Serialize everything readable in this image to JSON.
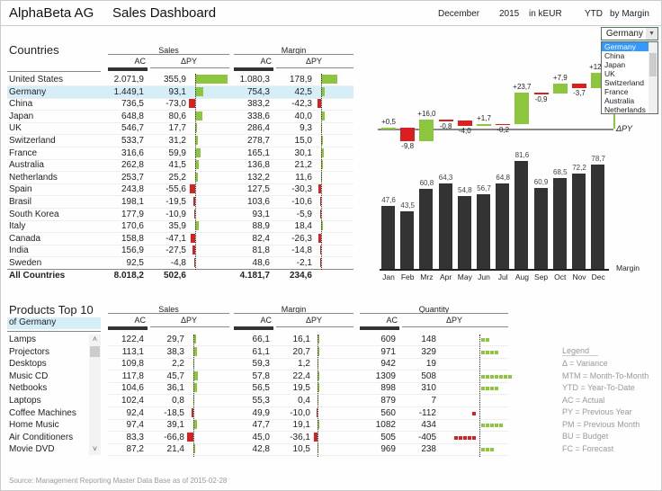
{
  "header": {
    "company": "AlphaBeta AG",
    "title": "Sales Dashboard",
    "month": "December",
    "year": "2015",
    "unit": "in kEUR",
    "period": "YTD",
    "measure": "by Margin"
  },
  "colors": {
    "positive": "#8cc63f",
    "negative": "#d9201f",
    "bar": "#333333",
    "highlight": "#d6eef8"
  },
  "countries": {
    "title": "Countries",
    "sales_label": "Sales",
    "margin_label": "Margin",
    "ac_label": "AC",
    "dpy_label": "ΔPY",
    "rows": [
      {
        "name": "United States",
        "sales_ac": "2.071,9",
        "sales_dpy": 355.9,
        "sales_dpy_text": "355,9",
        "margin_ac": "1.080,3",
        "margin_dpy": 178.9,
        "margin_dpy_text": "178,9"
      },
      {
        "name": "Germany",
        "sales_ac": "1.449,1",
        "sales_dpy": 93.1,
        "sales_dpy_text": "93,1",
        "margin_ac": "754,3",
        "margin_dpy": 42.5,
        "margin_dpy_text": "42,5",
        "selected": true
      },
      {
        "name": "China",
        "sales_ac": "736,5",
        "sales_dpy": -73.0,
        "sales_dpy_text": "-73,0",
        "margin_ac": "383,2",
        "margin_dpy": -42.3,
        "margin_dpy_text": "-42,3"
      },
      {
        "name": "Japan",
        "sales_ac": "648,8",
        "sales_dpy": 80.6,
        "sales_dpy_text": "80,6",
        "margin_ac": "338,6",
        "margin_dpy": 40.0,
        "margin_dpy_text": "40,0"
      },
      {
        "name": "UK",
        "sales_ac": "546,7",
        "sales_dpy": 17.7,
        "sales_dpy_text": "17,7",
        "margin_ac": "286,4",
        "margin_dpy": 9.3,
        "margin_dpy_text": "9,3"
      },
      {
        "name": "Switzerland",
        "sales_ac": "533,7",
        "sales_dpy": 31.2,
        "sales_dpy_text": "31,2",
        "margin_ac": "278,7",
        "margin_dpy": 15.0,
        "margin_dpy_text": "15,0"
      },
      {
        "name": "France",
        "sales_ac": "316,6",
        "sales_dpy": 59.9,
        "sales_dpy_text": "59,9",
        "margin_ac": "165,1",
        "margin_dpy": 30.1,
        "margin_dpy_text": "30,1"
      },
      {
        "name": "Australia",
        "sales_ac": "262,8",
        "sales_dpy": 41.5,
        "sales_dpy_text": "41,5",
        "margin_ac": "136,8",
        "margin_dpy": 21.2,
        "margin_dpy_text": "21,2"
      },
      {
        "name": "Netherlands",
        "sales_ac": "253,7",
        "sales_dpy": 25.2,
        "sales_dpy_text": "25,2",
        "margin_ac": "132,2",
        "margin_dpy": 11.6,
        "margin_dpy_text": "11,6"
      },
      {
        "name": "Spain",
        "sales_ac": "243,8",
        "sales_dpy": -55.6,
        "sales_dpy_text": "-55,6",
        "margin_ac": "127,5",
        "margin_dpy": -30.3,
        "margin_dpy_text": "-30,3"
      },
      {
        "name": "Brasil",
        "sales_ac": "198,1",
        "sales_dpy": -19.5,
        "sales_dpy_text": "-19,5",
        "margin_ac": "103,6",
        "margin_dpy": -10.6,
        "margin_dpy_text": "-10,6"
      },
      {
        "name": "South Korea",
        "sales_ac": "177,9",
        "sales_dpy": -10.9,
        "sales_dpy_text": "-10,9",
        "margin_ac": "93,1",
        "margin_dpy": -5.9,
        "margin_dpy_text": "-5,9"
      },
      {
        "name": "Italy",
        "sales_ac": "170,6",
        "sales_dpy": 35.9,
        "sales_dpy_text": "35,9",
        "margin_ac": "88,9",
        "margin_dpy": 18.4,
        "margin_dpy_text": "18,4"
      },
      {
        "name": "Canada",
        "sales_ac": "158,8",
        "sales_dpy": -47.1,
        "sales_dpy_text": "-47,1",
        "margin_ac": "82,4",
        "margin_dpy": -26.3,
        "margin_dpy_text": "-26,3"
      },
      {
        "name": "India",
        "sales_ac": "156,9",
        "sales_dpy": -27.5,
        "sales_dpy_text": "-27,5",
        "margin_ac": "81,8",
        "margin_dpy": -14.8,
        "margin_dpy_text": "-14,8"
      },
      {
        "name": "Sweden",
        "sales_ac": "92,5",
        "sales_dpy": -4.8,
        "sales_dpy_text": "-4,8",
        "margin_ac": "48,6",
        "margin_dpy": -2.1,
        "margin_dpy_text": "-2,1"
      }
    ],
    "total": {
      "name": "All Countries",
      "sales_ac": "8.018,2",
      "sales_dpy_text": "502,6",
      "margin_ac": "4.181,7",
      "margin_dpy_text": "234,6"
    }
  },
  "dropdown": {
    "value": "Germany",
    "options": [
      "Germany",
      "China",
      "Japan",
      "UK",
      "Switzerland",
      "France",
      "Australia",
      "Netherlands"
    ]
  },
  "chart_data": [
    {
      "type": "waterfall",
      "title": "ΔPY",
      "categories": [
        "Jan",
        "Feb",
        "Mrz",
        "Apr",
        "May",
        "Jun",
        "Jul",
        "Aug",
        "Sep",
        "Oct",
        "Nov",
        "Dec"
      ],
      "values": [
        0.5,
        -9.8,
        16.0,
        -0.8,
        -4.0,
        1.7,
        -0.2,
        23.7,
        -0.9,
        7.9,
        -3.7,
        12.1
      ],
      "labels": [
        "+0,5",
        "-9,8",
        "+16,0",
        "-0,8",
        "-4,0",
        "+1,7",
        "-0,2",
        "+23,7",
        "-0,9",
        "+7,9",
        "-3,7",
        "+12,1"
      ]
    },
    {
      "type": "bar",
      "title": "Margin",
      "categories": [
        "Jan",
        "Feb",
        "Mrz",
        "Apr",
        "May",
        "Jun",
        "Jul",
        "Aug",
        "Sep",
        "Oct",
        "Nov",
        "Dec"
      ],
      "values": [
        47.6,
        43.5,
        60.8,
        64.3,
        54.8,
        56.7,
        64.8,
        81.6,
        60.9,
        68.5,
        72.2,
        78.7
      ],
      "labels": [
        "47,6",
        "43,5",
        "60,8",
        "64,3",
        "54,8",
        "56,7",
        "64,8",
        "81,6",
        "60,9",
        "68,5",
        "72,2",
        "78,7"
      ]
    }
  ],
  "products": {
    "title": "Products Top 10",
    "subtitle": "of Germany",
    "sales_label": "Sales",
    "margin_label": "Margin",
    "quantity_label": "Quantity",
    "ac_label": "AC",
    "dpy_label": "ΔPY",
    "rows": [
      {
        "name": "Lamps",
        "sales_ac": "122,4",
        "sales_dpy": 29.7,
        "sales_dpy_text": "29,7",
        "margin_ac": "66,1",
        "margin_dpy": 16.1,
        "margin_dpy_text": "16,1",
        "qty_ac": "609",
        "qty_dpy": 148,
        "qty_dpy_text": "148",
        "qty_marks": 2
      },
      {
        "name": "Projectors",
        "sales_ac": "113,1",
        "sales_dpy": 38.3,
        "sales_dpy_text": "38,3",
        "margin_ac": "61,1",
        "margin_dpy": 20.7,
        "margin_dpy_text": "20,7",
        "qty_ac": "971",
        "qty_dpy": 329,
        "qty_dpy_text": "329",
        "qty_marks": 4
      },
      {
        "name": "Desktops",
        "sales_ac": "109,8",
        "sales_dpy": 2.2,
        "sales_dpy_text": "2,2",
        "margin_ac": "59,3",
        "margin_dpy": 1.2,
        "margin_dpy_text": "1,2",
        "qty_ac": "942",
        "qty_dpy": 19,
        "qty_dpy_text": "19",
        "qty_marks": 0
      },
      {
        "name": "Music CD",
        "sales_ac": "117,8",
        "sales_dpy": 45.7,
        "sales_dpy_text": "45,7",
        "margin_ac": "57,8",
        "margin_dpy": 22.4,
        "margin_dpy_text": "22,4",
        "qty_ac": "1309",
        "qty_dpy": 508,
        "qty_dpy_text": "508",
        "qty_marks": 7
      },
      {
        "name": "Netbooks",
        "sales_ac": "104,6",
        "sales_dpy": 36.1,
        "sales_dpy_text": "36,1",
        "margin_ac": "56,5",
        "margin_dpy": 19.5,
        "margin_dpy_text": "19,5",
        "qty_ac": "898",
        "qty_dpy": 310,
        "qty_dpy_text": "310",
        "qty_marks": 4
      },
      {
        "name": "Laptops",
        "sales_ac": "102,4",
        "sales_dpy": 0.8,
        "sales_dpy_text": "0,8",
        "margin_ac": "55,3",
        "margin_dpy": 0.4,
        "margin_dpy_text": "0,4",
        "qty_ac": "879",
        "qty_dpy": 7,
        "qty_dpy_text": "7",
        "qty_marks": 0
      },
      {
        "name": "Coffee Machines",
        "sales_ac": "92,4",
        "sales_dpy": -18.5,
        "sales_dpy_text": "-18,5",
        "margin_ac": "49,9",
        "margin_dpy": -10.0,
        "margin_dpy_text": "-10,0",
        "qty_ac": "560",
        "qty_dpy": -112,
        "qty_dpy_text": "-112",
        "qty_marks": 1
      },
      {
        "name": "Home Music",
        "sales_ac": "97,4",
        "sales_dpy": 39.1,
        "sales_dpy_text": "39,1",
        "margin_ac": "47,7",
        "margin_dpy": 19.1,
        "margin_dpy_text": "19,1",
        "qty_ac": "1082",
        "qty_dpy": 434,
        "qty_dpy_text": "434",
        "qty_marks": 5
      },
      {
        "name": "Air Conditioners",
        "sales_ac": "83,3",
        "sales_dpy": -66.8,
        "sales_dpy_text": "-66,8",
        "margin_ac": "45,0",
        "margin_dpy": -36.1,
        "margin_dpy_text": "-36,1",
        "qty_ac": "505",
        "qty_dpy": -405,
        "qty_dpy_text": "-405",
        "qty_marks": 5
      },
      {
        "name": "Movie DVD",
        "sales_ac": "87,2",
        "sales_dpy": 21.4,
        "sales_dpy_text": "21,4",
        "margin_ac": "42,8",
        "margin_dpy": 10.5,
        "margin_dpy_text": "10,5",
        "qty_ac": "969",
        "qty_dpy": 238,
        "qty_dpy_text": "238",
        "qty_marks": 3
      }
    ]
  },
  "legend": {
    "title": "Legend",
    "items": [
      "Δ = Variance",
      "MTM = Month-To-Month",
      "YTD = Year-To-Date",
      "AC = Actual",
      "PY = Previous Year",
      "PM = Previous Month",
      "BU = Budget",
      "FC = Forecast"
    ]
  },
  "footer": {
    "source": "Source: Management Reporting Master Data Base as of 2015-02-28"
  }
}
